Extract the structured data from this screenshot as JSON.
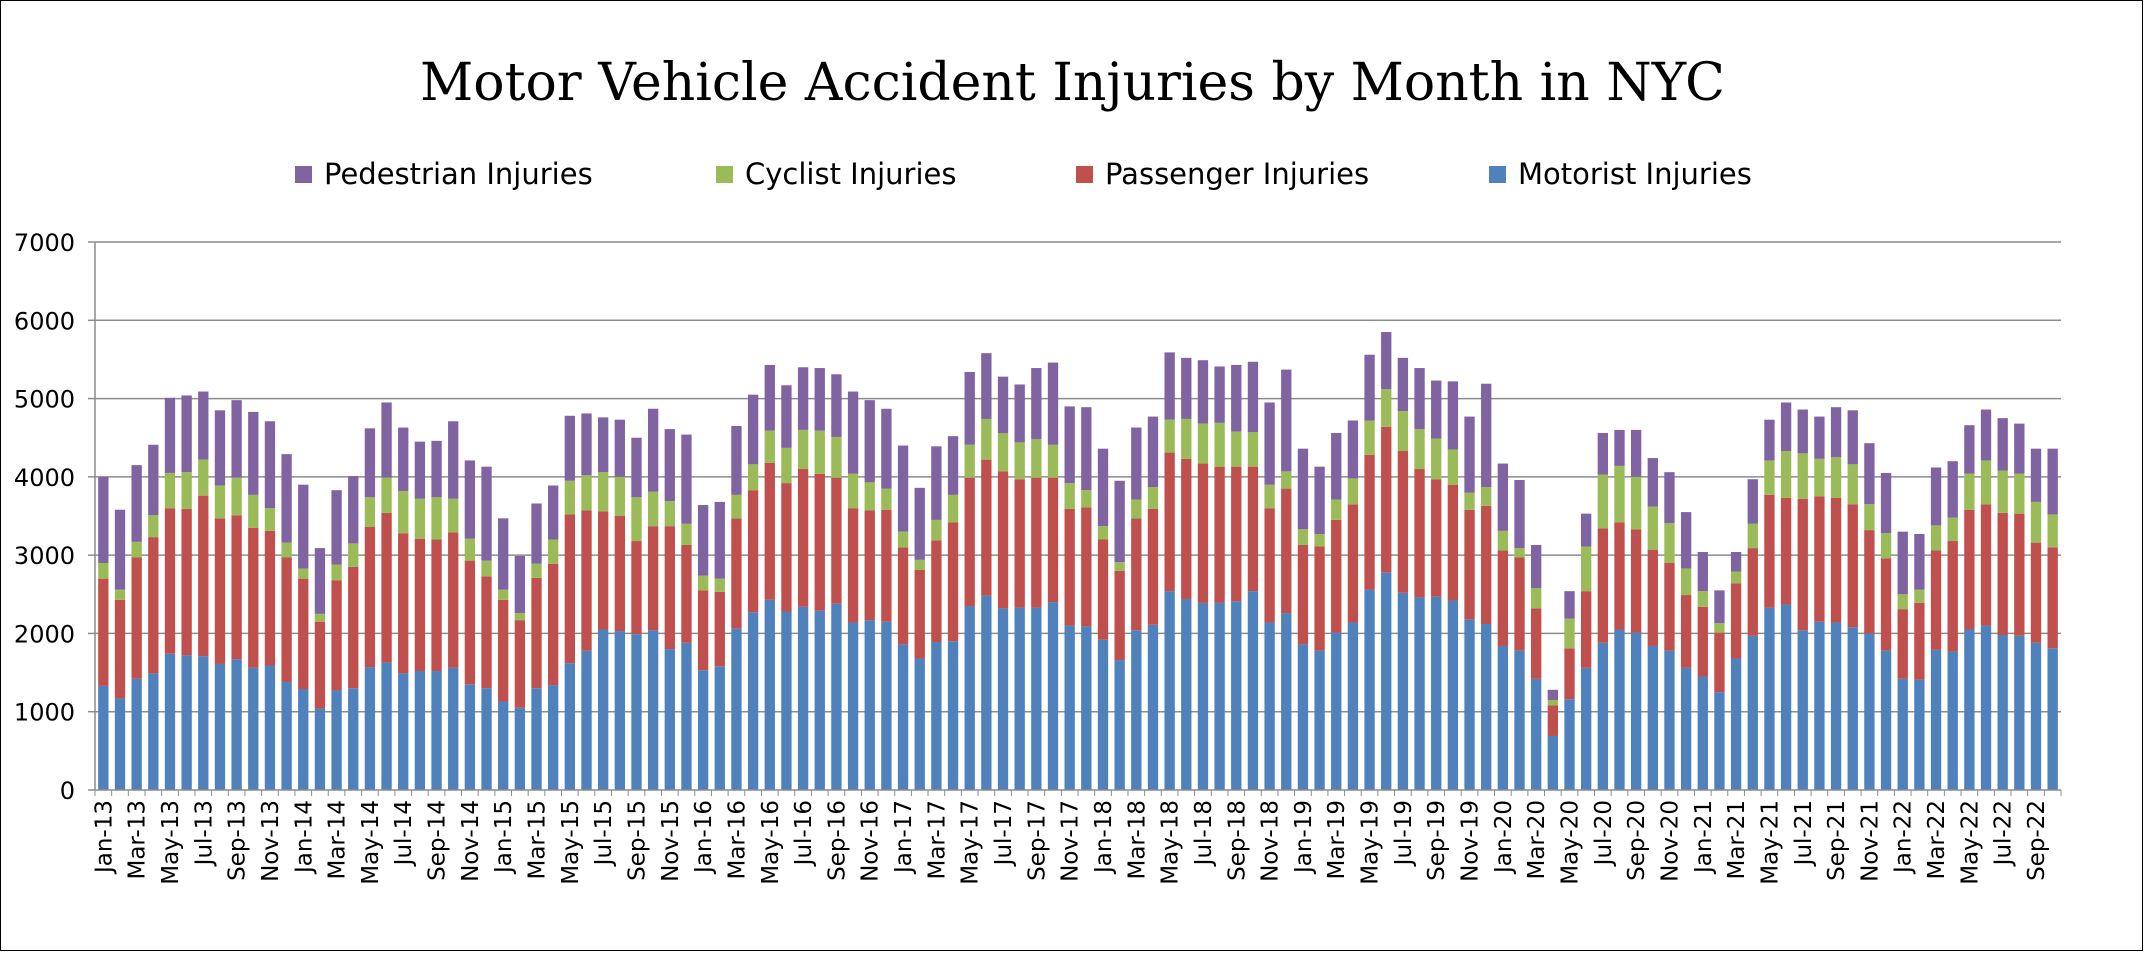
{
  "chart_data": {
    "type": "bar",
    "stacked": true,
    "title": "Motor Vehicle Accident Injuries by Month in NYC",
    "xlabel": "",
    "ylabel": "",
    "ylim": [
      0,
      7000
    ],
    "yticks": [
      0,
      1000,
      2000,
      3000,
      4000,
      5000,
      6000,
      7000
    ],
    "grid": true,
    "legend_position": "top",
    "categories": [
      "Jan-13",
      "Feb-13",
      "Mar-13",
      "Apr-13",
      "May-13",
      "Jun-13",
      "Jul-13",
      "Aug-13",
      "Sep-13",
      "Oct-13",
      "Nov-13",
      "Dec-13",
      "Jan-14",
      "Feb-14",
      "Mar-14",
      "Apr-14",
      "May-14",
      "Jun-14",
      "Jul-14",
      "Aug-14",
      "Sep-14",
      "Oct-14",
      "Nov-14",
      "Dec-14",
      "Jan-15",
      "Feb-15",
      "Mar-15",
      "Apr-15",
      "May-15",
      "Jun-15",
      "Jul-15",
      "Aug-15",
      "Sep-15",
      "Oct-15",
      "Nov-15",
      "Dec-15",
      "Jan-16",
      "Feb-16",
      "Mar-16",
      "Apr-16",
      "May-16",
      "Jun-16",
      "Jul-16",
      "Aug-16",
      "Sep-16",
      "Oct-16",
      "Nov-16",
      "Dec-16",
      "Jan-17",
      "Feb-17",
      "Mar-17",
      "Apr-17",
      "May-17",
      "Jun-17",
      "Jul-17",
      "Aug-17",
      "Sep-17",
      "Oct-17",
      "Nov-17",
      "Dec-17",
      "Jan-18",
      "Feb-18",
      "Mar-18",
      "Apr-18",
      "May-18",
      "Jun-18",
      "Jul-18",
      "Aug-18",
      "Sep-18",
      "Oct-18",
      "Nov-18",
      "Dec-18",
      "Jan-19",
      "Feb-19",
      "Mar-19",
      "Apr-19",
      "May-19",
      "Jun-19",
      "Jul-19",
      "Aug-19",
      "Sep-19",
      "Oct-19",
      "Nov-19",
      "Dec-19",
      "Jan-20",
      "Feb-20",
      "Mar-20",
      "Apr-20",
      "May-20",
      "Jun-20",
      "Jul-20",
      "Aug-20",
      "Sep-20",
      "Oct-20",
      "Nov-20",
      "Dec-20",
      "Jan-21",
      "Feb-21",
      "Mar-21",
      "Apr-21",
      "May-21",
      "Jun-21",
      "Jul-21",
      "Aug-21",
      "Sep-21",
      "Oct-21",
      "Nov-21",
      "Dec-21",
      "Jan-22",
      "Feb-22",
      "Mar-22",
      "Apr-22",
      "May-22",
      "Jun-22",
      "Jul-22",
      "Aug-22",
      "Sep-22",
      "Oct-22"
    ],
    "x_tick_labels": [
      "Jan-13",
      "Mar-13",
      "May-13",
      "Jul-13",
      "Sep-13",
      "Nov-13",
      "Jan-14",
      "Mar-14",
      "May-14",
      "Jul-14",
      "Sep-14",
      "Nov-14",
      "Jan-15",
      "Mar-15",
      "May-15",
      "Jul-15",
      "Sep-15",
      "Nov-15",
      "Jan-16",
      "Mar-16",
      "May-16",
      "Jul-16",
      "Sep-16",
      "Nov-16",
      "Jan-17",
      "Mar-17",
      "May-17",
      "Jul-17",
      "Sep-17",
      "Nov-17",
      "Jan-18",
      "Mar-18",
      "May-18",
      "Jul-18",
      "Sep-18",
      "Nov-18",
      "Jan-19",
      "Mar-19",
      "May-19",
      "Jul-19",
      "Sep-19",
      "Nov-19",
      "Jan-20",
      "Mar-20",
      "May-20",
      "Jul-20",
      "Sep-20",
      "Nov-20",
      "Jan-21",
      "Mar-21",
      "May-21",
      "Jul-21",
      "Sep-21",
      "Nov-21",
      "Jan-22",
      "Mar-22",
      "May-22",
      "Jul-22",
      "Sep-22"
    ],
    "series": [
      {
        "name": "Motorist Injuries",
        "color": "#4f81bd",
        "values": [
          1330,
          1170,
          1420,
          1490,
          1740,
          1720,
          1710,
          1610,
          1670,
          1560,
          1590,
          1380,
          1290,
          1040,
          1270,
          1300,
          1570,
          1630,
          1490,
          1520,
          1520,
          1560,
          1350,
          1300,
          1130,
          1050,
          1300,
          1340,
          1620,
          1780,
          2050,
          2030,
          1990,
          2040,
          1800,
          1880,
          1530,
          1580,
          2060,
          2270,
          2430,
          2280,
          2340,
          2290,
          2380,
          2140,
          2170,
          2150,
          1860,
          1680,
          1890,
          1900,
          2350,
          2480,
          2320,
          2330,
          2330,
          2400,
          2100,
          2090,
          1920,
          1660,
          2040,
          2110,
          2540,
          2440,
          2390,
          2390,
          2410,
          2540,
          2140,
          2260,
          1860,
          1780,
          2010,
          2140,
          2560,
          2780,
          2520,
          2460,
          2470,
          2420,
          2180,
          2120,
          1840,
          1780,
          1420,
          690,
          1160,
          1560,
          1880,
          2050,
          2010,
          1840,
          1780,
          1560,
          1450,
          1250,
          1680,
          1970,
          2330,
          2370,
          2040,
          2150,
          2140,
          2080,
          2000,
          1780,
          1420,
          1410,
          1790,
          1770,
          2050,
          2100,
          1980,
          1970,
          1880,
          1810
        ]
      },
      {
        "name": "Passenger Injuries",
        "color": "#c0504d",
        "values": [
          1370,
          1260,
          1550,
          1740,
          1860,
          1870,
          2050,
          1860,
          1840,
          1790,
          1720,
          1590,
          1410,
          1110,
          1410,
          1550,
          1790,
          1910,
          1790,
          1690,
          1680,
          1730,
          1580,
          1430,
          1300,
          1120,
          1410,
          1550,
          1900,
          1790,
          1510,
          1470,
          1190,
          1330,
          1570,
          1250,
          1020,
          950,
          1410,
          1560,
          1750,
          1640,
          1760,
          1750,
          1610,
          1460,
          1400,
          1430,
          1240,
          1130,
          1300,
          1520,
          1640,
          1740,
          1750,
          1640,
          1660,
          1590,
          1490,
          1520,
          1280,
          1140,
          1430,
          1480,
          1770,
          1790,
          1780,
          1740,
          1720,
          1590,
          1460,
          1590,
          1270,
          1330,
          1440,
          1510,
          1720,
          1860,
          1810,
          1640,
          1500,
          1480,
          1400,
          1510,
          1220,
          1190,
          900,
          390,
          650,
          980,
          1460,
          1370,
          1320,
          1230,
          1120,
          930,
          890,
          760,
          960,
          1120,
          1440,
          1360,
          1680,
          1600,
          1590,
          1570,
          1320,
          1180,
          890,
          980,
          1270,
          1410,
          1530,
          1550,
          1560,
          1560,
          1280,
          1290
        ]
      },
      {
        "name": "Cyclist Injuries",
        "color": "#9bbb59",
        "values": [
          200,
          130,
          200,
          280,
          450,
          470,
          460,
          420,
          480,
          420,
          290,
          190,
          130,
          100,
          200,
          300,
          380,
          450,
          540,
          510,
          540,
          430,
          280,
          200,
          130,
          90,
          180,
          310,
          430,
          450,
          500,
          500,
          560,
          440,
          320,
          270,
          190,
          170,
          300,
          330,
          410,
          450,
          500,
          550,
          520,
          440,
          360,
          270,
          200,
          130,
          260,
          350,
          420,
          520,
          490,
          470,
          490,
          420,
          330,
          220,
          170,
          110,
          240,
          280,
          420,
          510,
          510,
          560,
          450,
          440,
          300,
          220,
          200,
          160,
          260,
          330,
          440,
          480,
          510,
          510,
          520,
          450,
          220,
          240,
          250,
          120,
          260,
          70,
          380,
          570,
          690,
          720,
          670,
          550,
          510,
          340,
          200,
          120,
          150,
          310,
          440,
          600,
          580,
          480,
          520,
          510,
          330,
          320,
          190,
          170,
          320,
          300,
          460,
          560,
          540,
          510,
          520,
          420
        ]
      },
      {
        "name": "Pedestrian Injuries",
        "color": "#8064a2",
        "values": [
          1100,
          1020,
          980,
          900,
          960,
          980,
          870,
          960,
          990,
          1060,
          1110,
          1130,
          1070,
          840,
          950,
          860,
          880,
          960,
          810,
          730,
          720,
          990,
          1000,
          1200,
          910,
          730,
          770,
          690,
          830,
          790,
          700,
          730,
          760,
          1060,
          920,
          1140,
          900,
          980,
          880,
          890,
          840,
          800,
          800,
          800,
          800,
          1050,
          1050,
          1020,
          1100,
          920,
          940,
          750,
          930,
          840,
          720,
          740,
          910,
          1050,
          980,
          1060,
          990,
          1040,
          920,
          900,
          860,
          780,
          810,
          720,
          850,
          900,
          1050,
          1300,
          1030,
          860,
          850,
          740,
          840,
          730,
          680,
          780,
          740,
          870,
          970,
          1320,
          860,
          870,
          550,
          130,
          350,
          420,
          530,
          460,
          600,
          620,
          650,
          720,
          500,
          420,
          250,
          570,
          520,
          620,
          560,
          540,
          640,
          690,
          780,
          770,
          800,
          710,
          740,
          720,
          620,
          650,
          670,
          640,
          680,
          840
        ]
      }
    ],
    "legend": [
      "Pedestrian Injuries",
      "Cyclist Injuries",
      "Passenger Injuries",
      "Motorist Injuries"
    ]
  }
}
